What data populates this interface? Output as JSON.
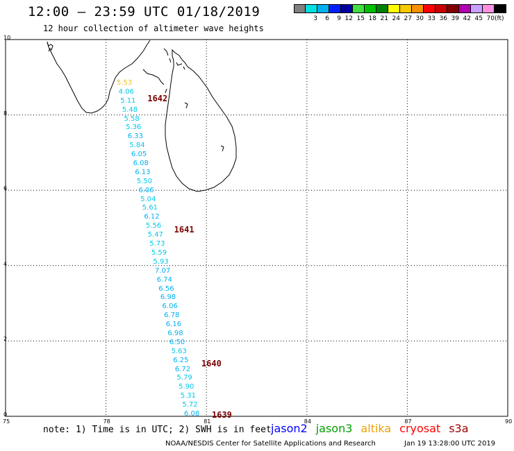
{
  "header": {
    "title": "12:00 – 23:59 UTC 01/18/2019",
    "subtitle": "12 hour collection of altimeter wave heights"
  },
  "color_scale": {
    "unit": "(ft)",
    "swatches": [
      {
        "label": "",
        "color": "#808080"
      },
      {
        "label": "3",
        "color": "#00e0e0"
      },
      {
        "label": "6",
        "color": "#00b0f0"
      },
      {
        "label": "9",
        "color": "#0020ff"
      },
      {
        "label": "12",
        "color": "#0000a0"
      },
      {
        "label": "15",
        "color": "#40e040"
      },
      {
        "label": "18",
        "color": "#00c000"
      },
      {
        "label": "21",
        "color": "#008000"
      },
      {
        "label": "24",
        "color": "#ffff00"
      },
      {
        "label": "27",
        "color": "#f8c800"
      },
      {
        "label": "30",
        "color": "#f89000"
      },
      {
        "label": "33",
        "color": "#ff0000"
      },
      {
        "label": "36",
        "color": "#c80000"
      },
      {
        "label": "39",
        "color": "#800000"
      },
      {
        "label": "42",
        "color": "#b000b0"
      },
      {
        "label": "45",
        "color": "#c8a0ff"
      },
      {
        "label": "70",
        "color": "#ff90e0"
      },
      {
        "label": "",
        "color": "#000000"
      }
    ]
  },
  "axes": {
    "lon_labels": [
      "75",
      "78",
      "81",
      "84",
      "87",
      "90"
    ],
    "lat_labels": [
      "0",
      "2",
      "4",
      "6",
      "8",
      "10"
    ]
  },
  "track": {
    "color_light": "#00c8e8",
    "color_orange": "#f0c020",
    "points": [
      {
        "value": "5.53",
        "color": "#f0c020"
      },
      {
        "value": "4.06",
        "color": "#00c8e8"
      },
      {
        "value": "5.11",
        "color": "#00c8e8"
      },
      {
        "value": "5.48",
        "color": "#00c8e8"
      },
      {
        "value": "5.58",
        "color": "#00c8e8"
      },
      {
        "value": "5.36",
        "color": "#00c8e8"
      },
      {
        "value": "6.33",
        "color": "#00b0f0"
      },
      {
        "value": "5.84",
        "color": "#00c8e8"
      },
      {
        "value": "6.05",
        "color": "#00b0f0"
      },
      {
        "value": "6.08",
        "color": "#00b0f0"
      },
      {
        "value": "6.13",
        "color": "#00b0f0"
      },
      {
        "value": "5.50",
        "color": "#00c8e8"
      },
      {
        "value": "6.06",
        "color": "#00b0f0"
      },
      {
        "value": "5.04",
        "color": "#00c8e8"
      },
      {
        "value": "5.61",
        "color": "#00c8e8"
      },
      {
        "value": "6.12",
        "color": "#00b0f0"
      },
      {
        "value": "5.56",
        "color": "#00c8e8"
      },
      {
        "value": "5.47",
        "color": "#00c8e8"
      },
      {
        "value": "5.73",
        "color": "#00c8e8"
      },
      {
        "value": "5.59",
        "color": "#00c8e8"
      },
      {
        "value": "5.93",
        "color": "#00c8e8"
      },
      {
        "value": "7.07",
        "color": "#00b0f0"
      },
      {
        "value": "6.74",
        "color": "#00b0f0"
      },
      {
        "value": "6.56",
        "color": "#00b0f0"
      },
      {
        "value": "6.98",
        "color": "#00b0f0"
      },
      {
        "value": "6.06",
        "color": "#00b0f0"
      },
      {
        "value": "6.78",
        "color": "#00b0f0"
      },
      {
        "value": "6.16",
        "color": "#00b0f0"
      },
      {
        "value": "6.98",
        "color": "#00b0f0"
      },
      {
        "value": "6.50",
        "color": "#00b0f0"
      },
      {
        "value": "5.63",
        "color": "#00c8e8"
      },
      {
        "value": "6.25",
        "color": "#00b0f0"
      },
      {
        "value": "6.72",
        "color": "#00b0f0"
      },
      {
        "value": "5.79",
        "color": "#00c8e8"
      },
      {
        "value": "5.90",
        "color": "#00c8e8"
      },
      {
        "value": "5.31",
        "color": "#00c8e8"
      },
      {
        "value": "5.72",
        "color": "#00c8e8"
      },
      {
        "value": "6.08",
        "color": "#00b0f0"
      }
    ],
    "pass_labels": [
      "1642",
      "1641",
      "1640",
      "1639"
    ]
  },
  "footer": {
    "note": "note: 1) Time is in UTC; 2) SWH is in feet",
    "credit": "NOAA/NESDIS Center for Satellite Applications and Research",
    "timestamp": "Jan 19 13:28:00 UTC 2019",
    "legend": [
      {
        "name": "jason2",
        "color": "#0000ff"
      },
      {
        "name": "jason3",
        "color": "#00a000"
      },
      {
        "name": "altika",
        "color": "#f0a000"
      },
      {
        "name": "cryosat",
        "color": "#ff0000"
      },
      {
        "name": "s3a",
        "color": "#a00000"
      }
    ]
  }
}
